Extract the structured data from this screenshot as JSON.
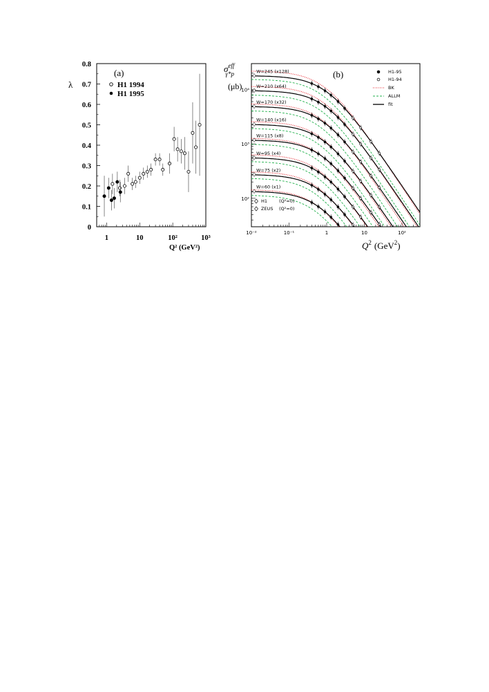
{
  "chart_data": [
    {
      "type": "scatter",
      "panel_label": "(a)",
      "xlabel": "Q²  (GeV²)",
      "ylabel": "λ",
      "x_scale": "log",
      "xlim": [
        0.5,
        1000
      ],
      "ylim": [
        0,
        0.8
      ],
      "x_ticks": [
        {
          "v": 1,
          "label": "1"
        },
        {
          "v": 10,
          "label": "10"
        },
        {
          "v": 100,
          "label": "10²"
        },
        {
          "v": 1000,
          "label": "10³"
        }
      ],
      "y_ticks": [
        0,
        0.1,
        0.2,
        0.3,
        0.4,
        0.5,
        0.6,
        0.7,
        0.8
      ],
      "y_tick_labels": [
        "0",
        "0.1",
        "0.2",
        "0.3",
        "0.4",
        "0.5",
        "0.6",
        "0.7",
        "0.8"
      ],
      "legend_position": "top-left",
      "series": [
        {
          "name": "H1 1994",
          "marker": "open-circle",
          "points": [
            [
              1.5,
              0.21,
              0.05
            ],
            [
              2.5,
              0.19,
              0.04
            ],
            [
              3.5,
              0.2,
              0.04
            ],
            [
              4.5,
              0.26,
              0.04
            ],
            [
              6,
              0.21,
              0.03
            ],
            [
              7.5,
              0.22,
              0.03
            ],
            [
              10,
              0.24,
              0.03
            ],
            [
              13,
              0.26,
              0.03
            ],
            [
              17,
              0.27,
              0.03
            ],
            [
              22,
              0.28,
              0.03
            ],
            [
              30,
              0.33,
              0.03
            ],
            [
              40,
              0.33,
              0.03
            ],
            [
              50,
              0.28,
              0.03
            ],
            [
              80,
              0.31,
              0.05
            ],
            [
              110,
              0.43,
              0.06
            ],
            [
              140,
              0.38,
              0.06
            ],
            [
              180,
              0.37,
              0.06
            ],
            [
              230,
              0.36,
              0.08
            ],
            [
              300,
              0.27,
              0.1
            ],
            [
              400,
              0.46,
              0.15
            ],
            [
              500,
              0.39,
              0.13
            ],
            [
              650,
              0.5,
              0.25
            ]
          ]
        },
        {
          "name": "H1 1995",
          "marker": "filled-circle",
          "points": [
            [
              0.85,
              0.15,
              0.1
            ],
            [
              1.15,
              0.19,
              0.05
            ],
            [
              1.4,
              0.13,
              0.05
            ],
            [
              1.7,
              0.14,
              0.05
            ],
            [
              2.1,
              0.22,
              0.05
            ],
            [
              2.6,
              0.17,
              0.05
            ]
          ]
        }
      ]
    },
    {
      "type": "line",
      "panel_label": "(b)",
      "ylabel": "σᵉᶠᶠ γ*p",
      "ylabel_unit": "(μb)",
      "xlabel": "Q²  (GeV²)",
      "x_scale": "log",
      "y_scale": "log",
      "xlim": [
        0.01,
        300
      ],
      "ylim": [
        30,
        30000
      ],
      "x_ticks": [
        {
          "v": 0.01,
          "label": "10⁻²"
        },
        {
          "v": 0.1,
          "label": "10⁻¹"
        },
        {
          "v": 1,
          "label": "1"
        },
        {
          "v": 10,
          "label": "10"
        },
        {
          "v": 100,
          "label": "10²"
        }
      ],
      "y_ticks": [
        {
          "v": 100,
          "label": "10²"
        },
        {
          "v": 1000,
          "label": "10³"
        },
        {
          "v": 10000,
          "label": "10⁴"
        }
      ],
      "legend_position": "top-right",
      "legend": [
        {
          "name": "H1-95",
          "style": "filled-circle"
        },
        {
          "name": "H1-94",
          "style": "open-circle"
        },
        {
          "name": "BK",
          "style": "red-dotted",
          "color": "#e8212b"
        },
        {
          "name": "ALLM",
          "style": "green-dashed",
          "color": "#22b14c"
        },
        {
          "name": "fit",
          "style": "black-solid",
          "color": "#000000"
        }
      ],
      "legend_low": [
        {
          "name": "H1",
          "sub": "(Q²=0)",
          "style": "open-diamond"
        },
        {
          "name": "ZEUS",
          "sub": "(Q²=0)",
          "style": "open-diamond"
        }
      ],
      "curves": [
        {
          "label": "W=245 (x128)",
          "fit_plateau": 18000,
          "bk_plateau": 22000,
          "allm_plateau": 15500
        },
        {
          "label": "W=210 (x64)",
          "fit_plateau": 9600,
          "bk_plateau": 11500,
          "allm_plateau": 8000
        },
        {
          "label": "W=170 (x32)",
          "fit_plateau": 4900,
          "bk_plateau": 5500,
          "allm_plateau": 4100
        },
        {
          "label": "W=140 (x16)",
          "fit_plateau": 2300,
          "bk_plateau": 2600,
          "allm_plateau": 1950
        },
        {
          "label": "W=115 (x8)",
          "fit_plateau": 1180,
          "bk_plateau": 1280,
          "allm_plateau": 1000
        },
        {
          "label": "W=95  (x4)",
          "fit_plateau": 560,
          "bk_plateau": 640,
          "allm_plateau": 480
        },
        {
          "label": "W=75 (x2)",
          "fit_plateau": 275,
          "bk_plateau": 310,
          "allm_plateau": 235
        },
        {
          "label": "W=60 (x1)",
          "fit_plateau": 135,
          "bk_plateau": 145,
          "allm_plateau": 115
        }
      ]
    }
  ]
}
